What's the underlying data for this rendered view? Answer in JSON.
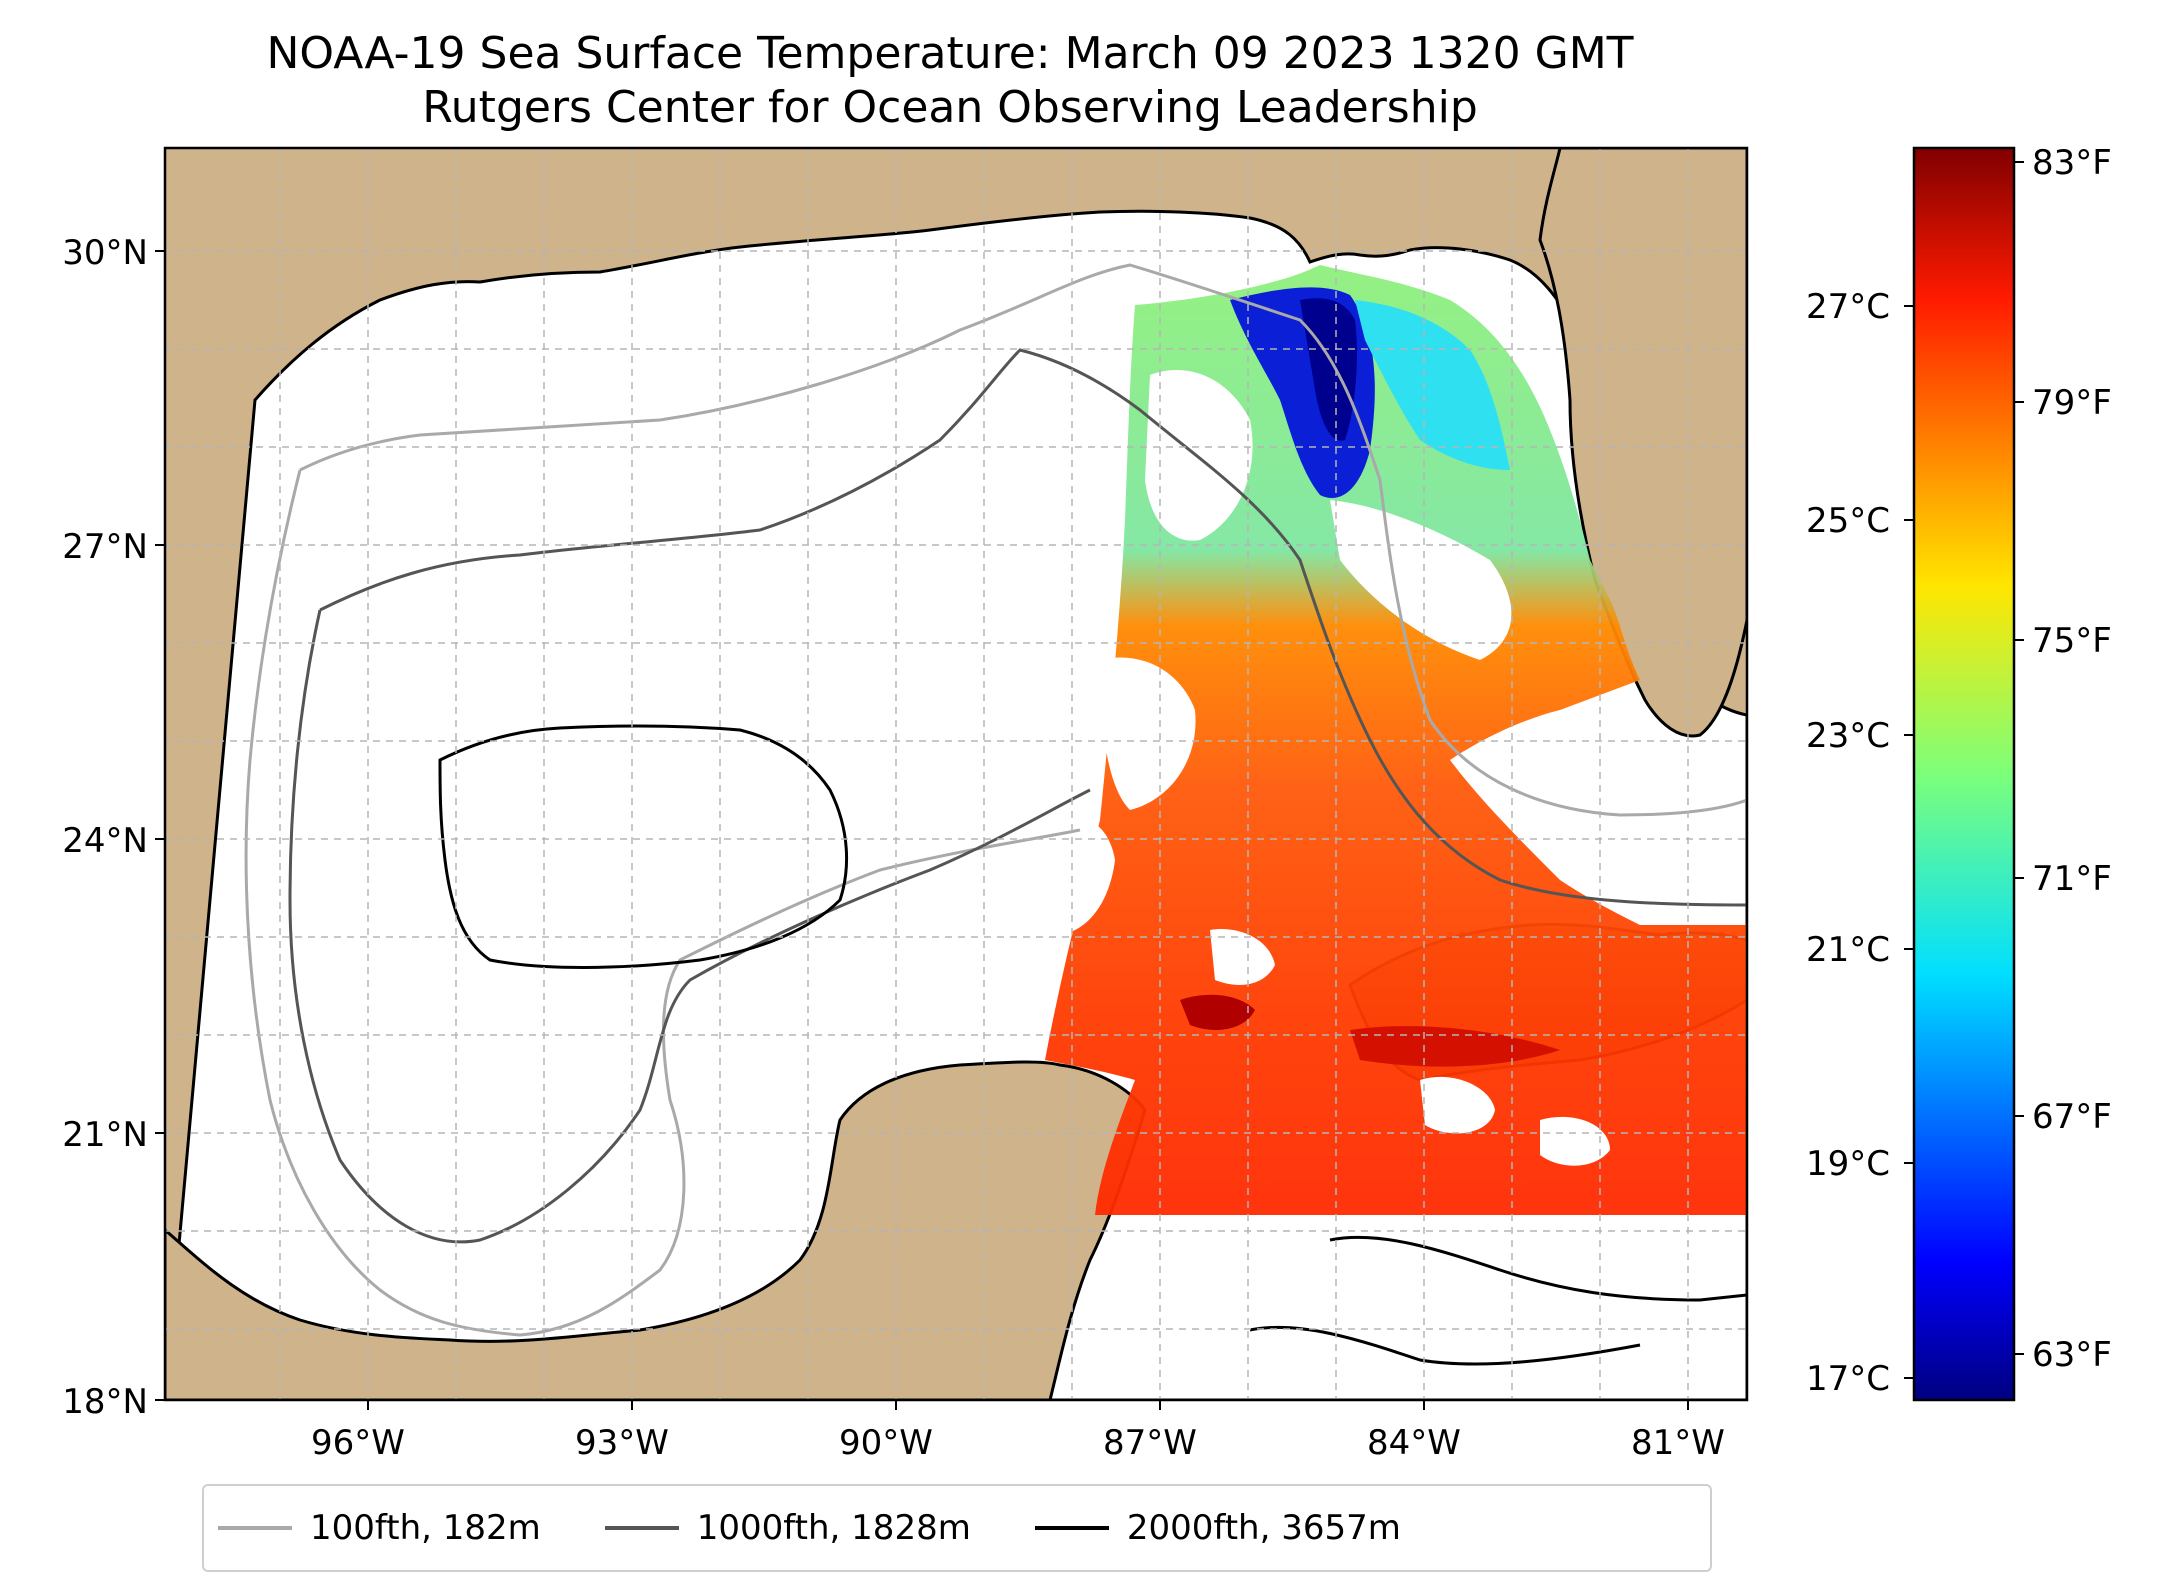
{
  "title": {
    "line1": "NOAA-19 Sea Surface Temperature: March 09 2023 1320 GMT",
    "line2": "Rutgers Center for Ocean Observing Leadership"
  },
  "map": {
    "land_color": "#cfb38b",
    "lake_color": "#9db5e0",
    "grid": true,
    "lon_range": [
      -98.0,
      -80.0
    ],
    "lat_range": [
      18.0,
      31.0
    ],
    "lat_ticks": [
      "30°N",
      "27°N",
      "24°N",
      "21°N",
      "18°N"
    ],
    "lon_ticks": [
      "96°W",
      "93°W",
      "90°W",
      "87°W",
      "84°W",
      "81°W"
    ]
  },
  "colorbar": {
    "colormap": "jet",
    "celsius_ticks": [
      "27°C",
      "25°C",
      "23°C",
      "21°C",
      "19°C",
      "17°C"
    ],
    "fahrenheit_ticks": [
      "83°F",
      "79°F",
      "75°F",
      "71°F",
      "67°F",
      "63°F"
    ]
  },
  "legend": [
    {
      "label": "100fth, 182m",
      "color": "#a9a9a9"
    },
    {
      "label": "1000fth, 1828m",
      "color": "#555555"
    },
    {
      "label": "2000fth, 3657m",
      "color": "#000000"
    }
  ]
}
